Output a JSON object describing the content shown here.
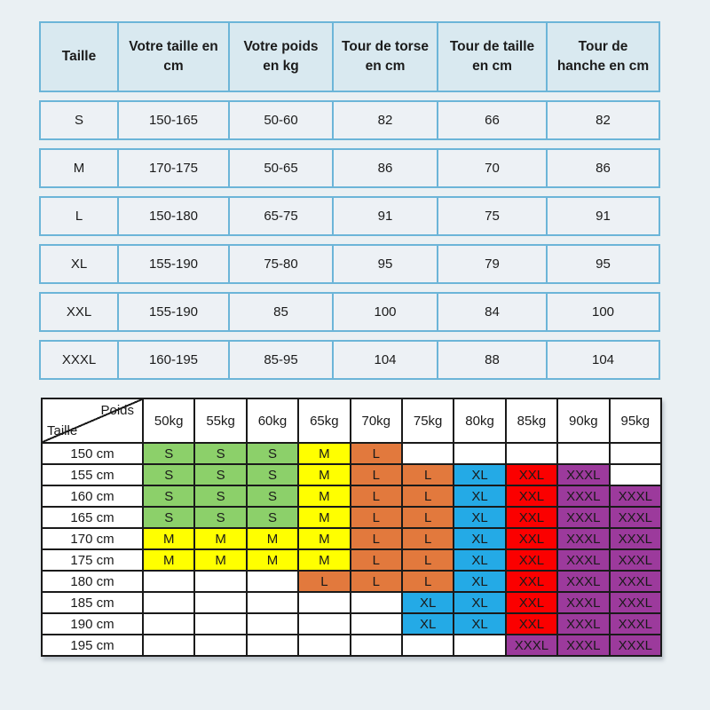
{
  "page": {
    "background": "#EAF0F3"
  },
  "size_table": {
    "border_color": "#6CB5D8",
    "header_bg": "#D9E9F0",
    "cell_bg": "#EDF1F5",
    "headers": [
      "Taille",
      "Votre taille en cm",
      "Votre poids en kg",
      "Tour de torse en cm",
      "Tour de taille en cm",
      "Tour de hanche en cm"
    ],
    "rows": [
      [
        "S",
        "150-165",
        "50-60",
        "82",
        "66",
        "82"
      ],
      [
        "M",
        "170-175",
        "50-65",
        "86",
        "70",
        "86"
      ],
      [
        "L",
        "150-180",
        "65-75",
        "91",
        "75",
        "91"
      ],
      [
        "XL",
        "155-190",
        "75-80",
        "95",
        "79",
        "95"
      ],
      [
        "XXL",
        "155-190",
        "85",
        "100",
        "84",
        "100"
      ],
      [
        "XXXL",
        "160-195",
        "85-95",
        "104",
        "88",
        "104"
      ]
    ]
  },
  "matrix": {
    "border_color": "#1A1A1A",
    "corner_top_right": "Poids",
    "corner_bottom_left": "Taille",
    "weight_headers": [
      "50kg",
      "55kg",
      "60kg",
      "65kg",
      "70kg",
      "75kg",
      "80kg",
      "85kg",
      "90kg",
      "95kg"
    ],
    "size_colors": {
      "S": "#8CD06A",
      "M": "#FFFF00",
      "L": "#E2793D",
      "XL": "#24AAE6",
      "XXL": "#FB0000",
      "XXXL": "#9C3A9C"
    },
    "rows": [
      {
        "height": "150 cm",
        "cells": [
          "S",
          "S",
          "S",
          "M",
          "L",
          "",
          "",
          "",
          "",
          ""
        ]
      },
      {
        "height": "155 cm",
        "cells": [
          "S",
          "S",
          "S",
          "M",
          "L",
          "L",
          "XL",
          "XXL",
          "XXXL",
          ""
        ]
      },
      {
        "height": "160 cm",
        "cells": [
          "S",
          "S",
          "S",
          "M",
          "L",
          "L",
          "XL",
          "XXL",
          "XXXL",
          "XXXL"
        ]
      },
      {
        "height": "165 cm",
        "cells": [
          "S",
          "S",
          "S",
          "M",
          "L",
          "L",
          "XL",
          "XXL",
          "XXXL",
          "XXXL"
        ]
      },
      {
        "height": "170 cm",
        "cells": [
          "M",
          "M",
          "M",
          "M",
          "L",
          "L",
          "XL",
          "XXL",
          "XXXL",
          "XXXL"
        ]
      },
      {
        "height": "175 cm",
        "cells": [
          "M",
          "M",
          "M",
          "M",
          "L",
          "L",
          "XL",
          "XXL",
          "XXXL",
          "XXXL"
        ]
      },
      {
        "height": "180 cm",
        "cells": [
          "",
          "",
          "",
          "L",
          "L",
          "L",
          "XL",
          "XXL",
          "XXXL",
          "XXXL"
        ]
      },
      {
        "height": "185 cm",
        "cells": [
          "",
          "",
          "",
          "",
          "",
          "XL",
          "XL",
          "XXL",
          "XXXL",
          "XXXL"
        ]
      },
      {
        "height": "190 cm",
        "cells": [
          "",
          "",
          "",
          "",
          "",
          "XL",
          "XL",
          "XXL",
          "XXXL",
          "XXXL"
        ]
      },
      {
        "height": "195 cm",
        "cells": [
          "",
          "",
          "",
          "",
          "",
          "",
          "",
          "XXXL",
          "XXXL",
          "XXXL"
        ]
      }
    ]
  }
}
